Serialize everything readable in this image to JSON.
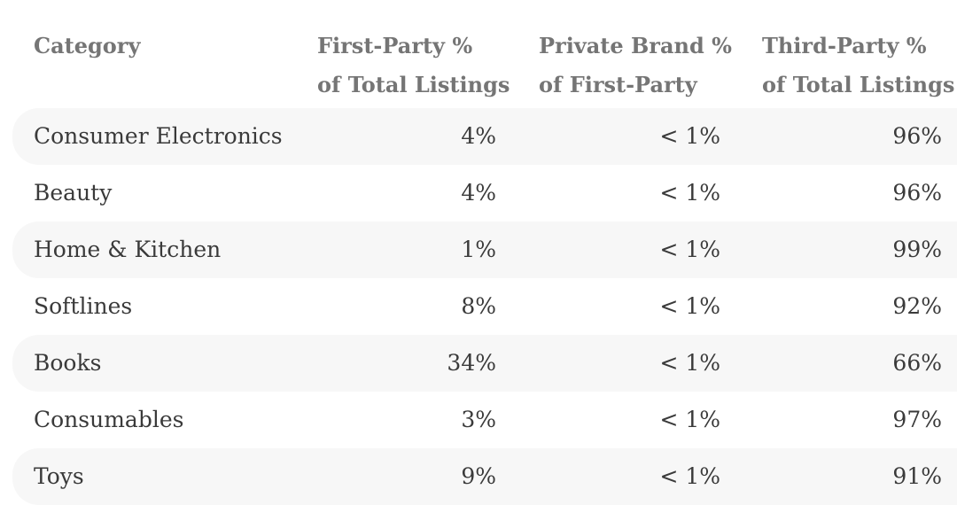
{
  "table": {
    "headers": {
      "category": [
        "Category"
      ],
      "first_party": [
        "First-Party %",
        "of Total Listings"
      ],
      "private_brand": [
        "Private Brand %",
        "of First-Party"
      ],
      "third_party": [
        "Third-Party %",
        "of Total Listings"
      ]
    },
    "rows": [
      {
        "category": "Consumer Electronics",
        "first_party": "4%",
        "private_brand": "< 1%",
        "third_party": "96%"
      },
      {
        "category": "Beauty",
        "first_party": "4%",
        "private_brand": "< 1%",
        "third_party": "96%"
      },
      {
        "category": "Home & Kitchen",
        "first_party": "1%",
        "private_brand": "< 1%",
        "third_party": "99%"
      },
      {
        "category": "Softlines",
        "first_party": "8%",
        "private_brand": "< 1%",
        "third_party": "92%"
      },
      {
        "category": "Books",
        "first_party": "34%",
        "private_brand": "< 1%",
        "third_party": "66%"
      },
      {
        "category": "Consumables",
        "first_party": "3%",
        "private_brand": "< 1%",
        "third_party": "97%"
      },
      {
        "category": "Toys",
        "first_party": "9%",
        "private_brand": "< 1%",
        "third_party": "91%"
      }
    ]
  },
  "colors": {
    "header_text": "#757575",
    "body_text": "#3a3a3a",
    "row_shade": "#f7f7f7"
  }
}
